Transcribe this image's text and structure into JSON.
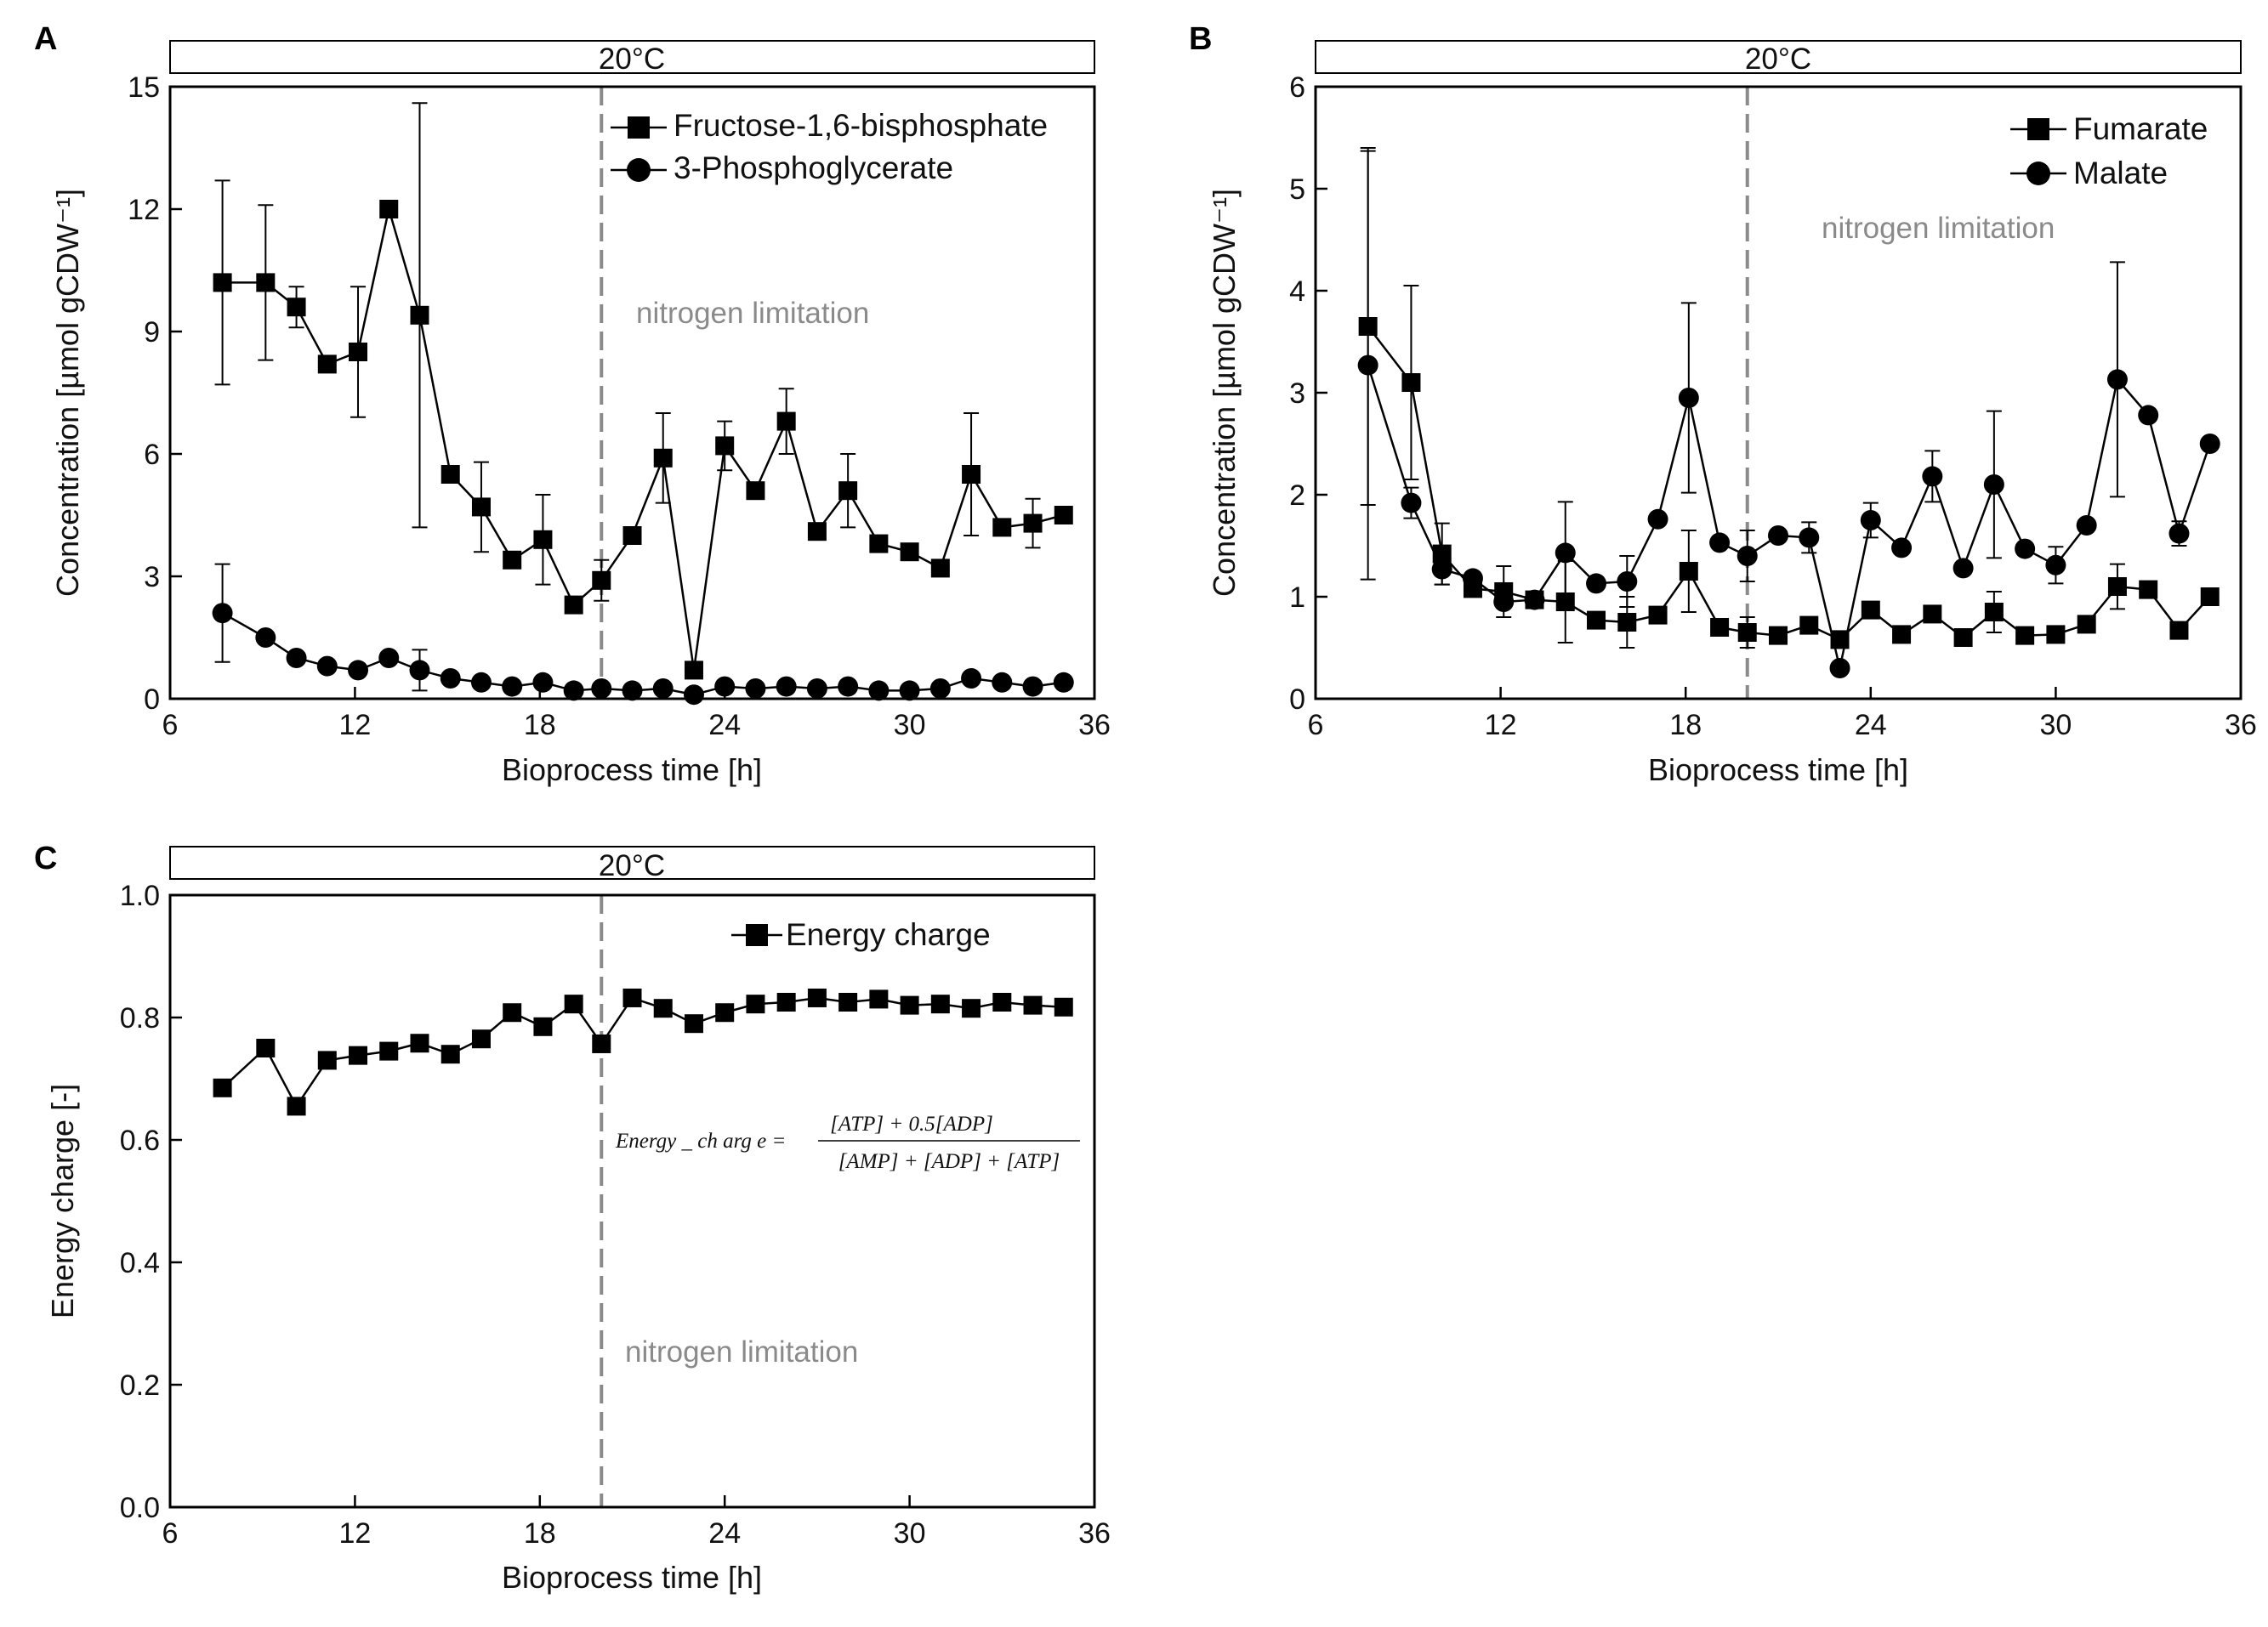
{
  "chart_data": [
    {
      "panel": "A",
      "type": "line",
      "temperature_label": "20°C",
      "annotation": "nitrogen limitation",
      "threshold_x": 20,
      "xlabel": "Bioprocess time [h]",
      "ylabel": "Concentration [µmol gCDW⁻¹]",
      "xlim": [
        6,
        36
      ],
      "ylim": [
        0,
        15
      ],
      "xticks": [
        6,
        12,
        18,
        24,
        30,
        36
      ],
      "yticks": [
        0,
        3,
        6,
        9,
        12,
        15
      ],
      "legend_position": "top-right",
      "series": [
        {
          "name": "Fructose-1,6-bisphosphate",
          "marker": "square",
          "x": [
            7.7,
            9.1,
            10.1,
            11.1,
            12.1,
            13.1,
            14.1,
            15.1,
            16.1,
            17.1,
            18.1,
            19.1,
            20.0,
            21.0,
            22.0,
            23.0,
            24.0,
            25.0,
            26.0,
            27.0,
            28.0,
            29.0,
            30.0,
            31.0,
            32.0,
            33.0,
            34.0,
            35.0
          ],
          "y": [
            10.2,
            10.2,
            9.6,
            8.2,
            8.5,
            12.0,
            9.4,
            5.5,
            4.7,
            3.4,
            3.9,
            2.3,
            2.9,
            4.0,
            5.9,
            0.7,
            6.2,
            5.1,
            6.8,
            4.1,
            5.1,
            3.8,
            3.6,
            3.2,
            5.5,
            4.2,
            4.3,
            4.5
          ],
          "error": [
            2.5,
            1.9,
            0.5,
            0,
            1.6,
            0,
            5.2,
            0,
            1.1,
            0,
            1.1,
            0,
            0.5,
            0,
            1.1,
            0,
            0.6,
            0,
            0.8,
            0,
            0.9,
            0,
            0,
            0,
            1.5,
            0,
            0.6,
            0
          ]
        },
        {
          "name": "3-Phosphoglycerate",
          "marker": "circle",
          "x": [
            7.7,
            9.1,
            10.1,
            11.1,
            12.1,
            13.1,
            14.1,
            15.1,
            16.1,
            17.1,
            18.1,
            19.1,
            20.0,
            21.0,
            22.0,
            23.0,
            24.0,
            25.0,
            26.0,
            27.0,
            28.0,
            29.0,
            30.0,
            31.0,
            32.0,
            33.0,
            34.0,
            35.0
          ],
          "y": [
            2.1,
            1.5,
            1.0,
            0.8,
            0.7,
            1.0,
            0.7,
            0.5,
            0.4,
            0.3,
            0.4,
            0.2,
            0.25,
            0.2,
            0.25,
            0.1,
            0.3,
            0.25,
            0.3,
            0.25,
            0.3,
            0.2,
            0.2,
            0.25,
            0.5,
            0.4,
            0.3,
            0.4
          ],
          "error": [
            1.2,
            0,
            0,
            0,
            0,
            0,
            0.5,
            0,
            0,
            0,
            0,
            0,
            0,
            0,
            0,
            0,
            0,
            0,
            0,
            0,
            0,
            0,
            0,
            0,
            0,
            0,
            0,
            0
          ]
        }
      ]
    },
    {
      "panel": "B",
      "type": "line",
      "temperature_label": "20°C",
      "annotation": "nitrogen limitation",
      "threshold_x": 20,
      "xlabel": "Bioprocess time [h]",
      "ylabel": "Concentration [µmol gCDW⁻¹]",
      "xlim": [
        6,
        36
      ],
      "ylim": [
        0,
        6
      ],
      "xticks": [
        6,
        12,
        18,
        24,
        30,
        36
      ],
      "yticks": [
        0,
        1,
        2,
        3,
        4,
        5,
        6
      ],
      "legend_position": "top-right",
      "series": [
        {
          "name": "Fumarate",
          "marker": "square",
          "x": [
            7.7,
            9.1,
            10.1,
            11.1,
            12.1,
            13.1,
            14.1,
            15.1,
            16.1,
            17.1,
            18.1,
            19.1,
            20.0,
            21.0,
            22.0,
            23.0,
            24.0,
            25.0,
            26.0,
            27.0,
            28.0,
            29.0,
            30.0,
            31.0,
            32.0,
            33.0,
            34.0,
            35.0
          ],
          "y": [
            3.65,
            3.1,
            1.42,
            1.08,
            1.05,
            0.97,
            0.95,
            0.77,
            0.75,
            0.82,
            1.25,
            0.7,
            0.65,
            0.62,
            0.72,
            0.58,
            0.87,
            0.63,
            0.83,
            0.6,
            0.85,
            0.62,
            0.63,
            0.73,
            1.1,
            1.07,
            0.67,
            1.0
          ],
          "error": [
            1.75,
            0.95,
            0.3,
            0,
            0.25,
            0,
            0.4,
            0,
            0.25,
            0,
            0.4,
            0,
            0.15,
            0,
            0,
            0,
            0,
            0,
            0,
            0,
            0.2,
            0,
            0,
            0,
            0.22,
            0,
            0,
            0
          ]
        },
        {
          "name": "Malate",
          "marker": "circle",
          "x": [
            7.7,
            9.1,
            10.1,
            11.1,
            12.1,
            13.1,
            14.1,
            15.1,
            16.1,
            17.1,
            18.1,
            19.1,
            20.0,
            21.0,
            22.0,
            23.0,
            24.0,
            25.0,
            26.0,
            27.0,
            28.0,
            29.0,
            30.0,
            31.0,
            32.0,
            33.0,
            34.0,
            35.0
          ],
          "y": [
            3.27,
            1.92,
            1.27,
            1.18,
            0.95,
            0.97,
            1.43,
            1.13,
            1.15,
            1.76,
            2.95,
            1.53,
            1.4,
            1.6,
            1.58,
            0.3,
            1.75,
            1.48,
            2.18,
            1.28,
            2.1,
            1.47,
            1.31,
            1.7,
            3.13,
            2.78,
            1.62,
            2.5
          ],
          "error": [
            2.1,
            0.15,
            0.15,
            0,
            0,
            0,
            0.5,
            0,
            0.25,
            0,
            0.93,
            0,
            0.25,
            0,
            0.15,
            0,
            0.17,
            0,
            0.25,
            0,
            0.72,
            0,
            0.18,
            0,
            1.15,
            0,
            0.12,
            0
          ]
        }
      ]
    },
    {
      "panel": "C",
      "type": "line",
      "temperature_label": "20°C",
      "annotation": "nitrogen limitation",
      "threshold_x": 20,
      "xlabel": "Bioprocess time [h]",
      "ylabel": "Energy charge [-]",
      "xlim": [
        6,
        36
      ],
      "ylim": [
        0,
        1
      ],
      "xticks": [
        6,
        12,
        18,
        24,
        30,
        36
      ],
      "yticks": [
        "0.0",
        "0.2",
        "0.4",
        "0.6",
        "0.8",
        "1.0"
      ],
      "legend_position": "top-right",
      "formula": {
        "lhs": "Energy _ ch arg e =",
        "numerator": "[ATP] + 0.5[ADP]",
        "denominator": "[AMP] + [ADP] + [ATP]"
      },
      "series": [
        {
          "name": "Energy charge",
          "marker": "square",
          "x": [
            7.7,
            9.1,
            10.1,
            11.1,
            12.1,
            13.1,
            14.1,
            15.1,
            16.1,
            17.1,
            18.1,
            19.1,
            20.0,
            21.0,
            22.0,
            23.0,
            24.0,
            25.0,
            26.0,
            27.0,
            28.0,
            29.0,
            30.0,
            31.0,
            32.0,
            33.0,
            34.0,
            35.0
          ],
          "y": [
            0.685,
            0.75,
            0.655,
            0.73,
            0.738,
            0.745,
            0.758,
            0.74,
            0.765,
            0.808,
            0.785,
            0.822,
            0.757,
            0.832,
            0.815,
            0.79,
            0.808,
            0.822,
            0.825,
            0.832,
            0.825,
            0.83,
            0.82,
            0.822,
            0.815,
            0.825,
            0.82,
            0.817
          ],
          "error": []
        }
      ]
    }
  ]
}
